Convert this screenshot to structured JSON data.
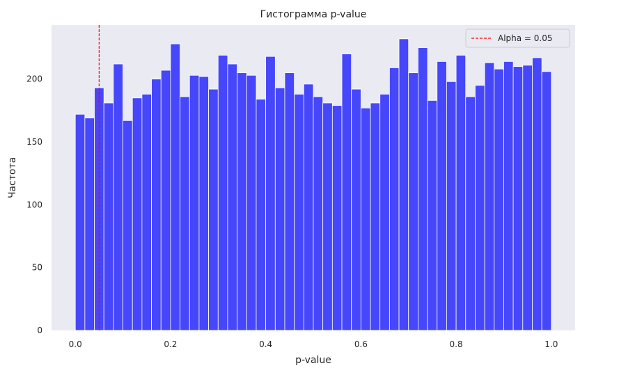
{
  "chart_data": {
    "type": "bar",
    "title": "Гистограмма p-value",
    "xlabel": "p-value",
    "ylabel": "Частота",
    "xlim": [
      -0.05,
      1.05
    ],
    "ylim": [
      0,
      243
    ],
    "grid": false,
    "legend_position": "top-right",
    "bar_color": "#0000ff",
    "bar_opacity": 0.7,
    "bins": {
      "start": 0.0,
      "width": 0.02,
      "counts": [
        172,
        169,
        193,
        181,
        212,
        167,
        185,
        188,
        200,
        207,
        228,
        186,
        203,
        202,
        192,
        219,
        212,
        205,
        203,
        184,
        218,
        193,
        205,
        188,
        196,
        186,
        181,
        179,
        220,
        192,
        177,
        181,
        188,
        209,
        232,
        205,
        225,
        183,
        214,
        198,
        219,
        186,
        195,
        213,
        208,
        214,
        210,
        211,
        217,
        206
      ]
    },
    "x_ticks": [
      {
        "value": 0.0,
        "label": "0.0"
      },
      {
        "value": 0.2,
        "label": "0.2"
      },
      {
        "value": 0.4,
        "label": "0.4"
      },
      {
        "value": 0.6,
        "label": "0.6"
      },
      {
        "value": 0.8,
        "label": "0.8"
      },
      {
        "value": 1.0,
        "label": "1.0"
      }
    ],
    "y_ticks": [
      {
        "value": 0,
        "label": "0"
      },
      {
        "value": 50,
        "label": "50"
      },
      {
        "value": 100,
        "label": "100"
      },
      {
        "value": 150,
        "label": "150"
      },
      {
        "value": 200,
        "label": "200"
      }
    ],
    "reference_line": {
      "x": 0.05,
      "label": "Alpha = 0.05",
      "color": "#ff0000",
      "style": "dashed"
    },
    "legend": [
      {
        "label": "Alpha = 0.05",
        "color": "#ff0000",
        "style": "dashed"
      }
    ],
    "plot_background": "#eaeaf2"
  }
}
